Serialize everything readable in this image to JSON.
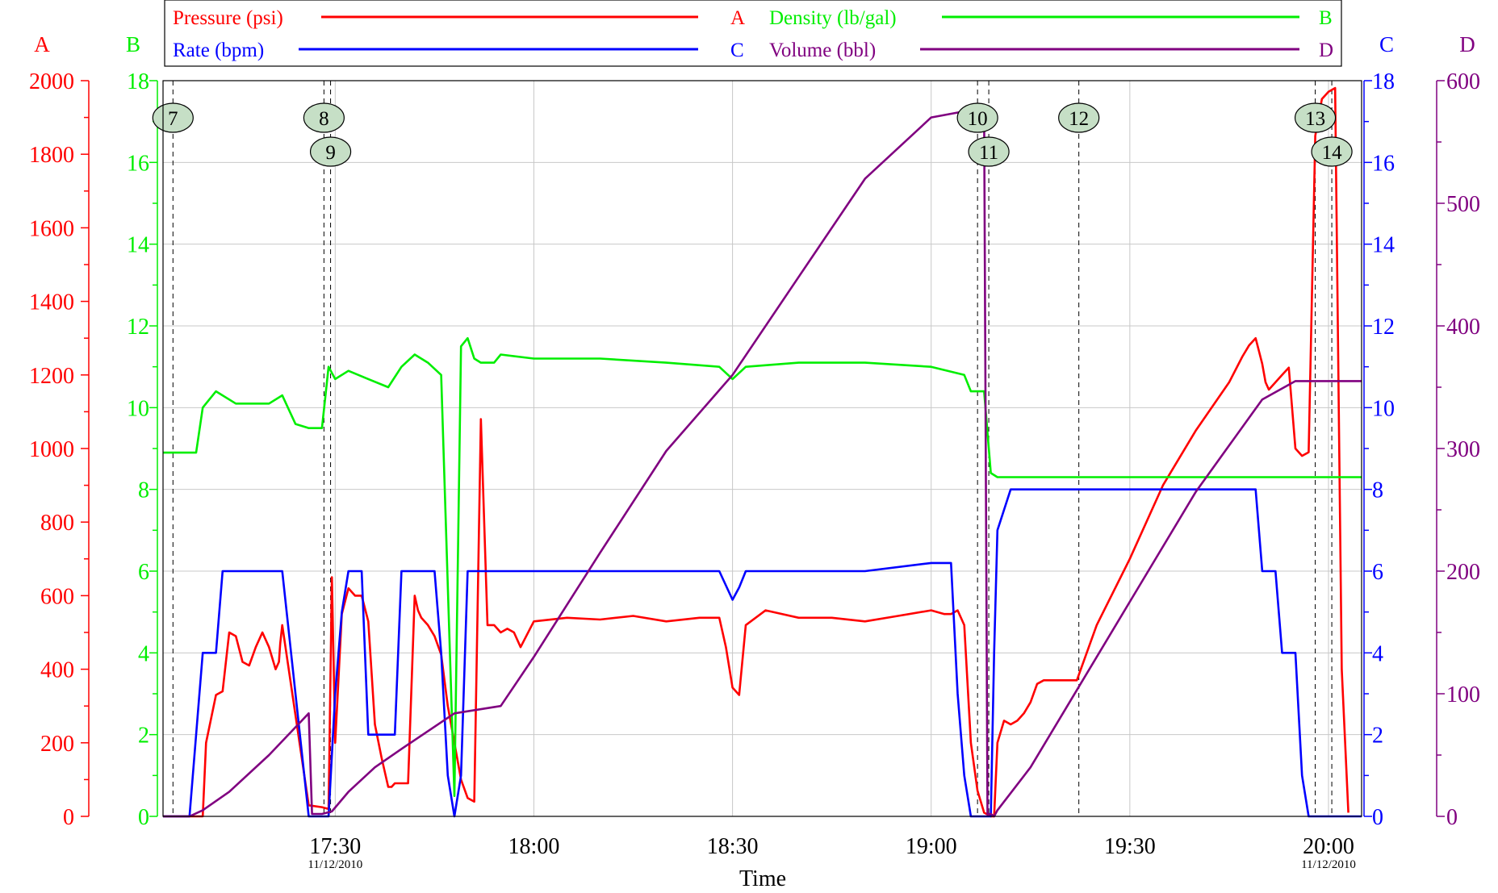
{
  "chart_data": {
    "type": "line",
    "title": "",
    "xlabel": "Time",
    "x_axis": {
      "unit": "time of day (hh:mm)",
      "range": [
        "17:04",
        "20:05"
      ],
      "tick_labels": [
        "17:30",
        "18:00",
        "18:30",
        "19:00",
        "19:30",
        "20:00"
      ],
      "date_labels": [
        {
          "at": "17:30",
          "text": "11/12/2010"
        },
        {
          "at": "20:00",
          "text": "11/12/2010"
        }
      ]
    },
    "axes": [
      {
        "id": "A",
        "letter": "A",
        "side": "left",
        "color": "#ff0000",
        "range": [
          0,
          2000
        ],
        "tick_labels": [
          "0",
          "200",
          "400",
          "600",
          "800",
          "1000",
          "1200",
          "1400",
          "1600",
          "1800",
          "2000"
        ]
      },
      {
        "id": "B",
        "letter": "B",
        "side": "left",
        "color": "#00ee00",
        "range": [
          0,
          18
        ],
        "tick_labels": [
          "0",
          "2",
          "4",
          "6",
          "8",
          "10",
          "12",
          "14",
          "16",
          "18"
        ]
      },
      {
        "id": "C",
        "letter": "C",
        "side": "right",
        "color": "#0000ff",
        "range": [
          0,
          18
        ],
        "tick_labels": [
          "0",
          "2",
          "4",
          "6",
          "8",
          "10",
          "12",
          "14",
          "16",
          "18"
        ]
      },
      {
        "id": "D",
        "letter": "D",
        "side": "right",
        "color": "#800080",
        "range": [
          0,
          600
        ],
        "tick_labels": [
          "0",
          "100",
          "200",
          "300",
          "400",
          "500",
          "600"
        ]
      }
    ],
    "legend_placement": "top",
    "grid": true,
    "series": [
      {
        "name": "Pressure (psi)",
        "axis": "A",
        "color": "#ff0000",
        "x": [
          "17:04",
          "17:06",
          "17:06.5",
          "17:07",
          "17:08",
          "17:09",
          "17:10",
          "17:10.5",
          "17:12",
          "17:13",
          "17:14",
          "17:15",
          "17:16",
          "17:17",
          "17:18",
          "17:19",
          "17:20",
          "17:21",
          "17:21.5",
          "17:21.7",
          "17:22",
          "17:26",
          "17:28",
          "17:29",
          "17:29.5",
          "17:30",
          "17:31",
          "17:32",
          "17:33",
          "17:34",
          "17:35",
          "17:36",
          "17:37",
          "17:38",
          "17:38.5",
          "17:39",
          "17:40",
          "17:41",
          "17:42",
          "17:42.5",
          "17:43",
          "17:44",
          "17:45",
          "17:46",
          "17:47",
          "17:48",
          "17:49",
          "17:50",
          "17:51",
          "17:52",
          "17:53",
          "17:54",
          "17:55",
          "17:56",
          "17:57",
          "17:58",
          "18:00",
          "18:05",
          "18:10",
          "18:15",
          "18:20",
          "18:25",
          "18:28",
          "18:29",
          "18:30",
          "18:31",
          "18:32",
          "18:35",
          "18:40",
          "18:45",
          "18:50",
          "18:55",
          "19:00",
          "19:02",
          "19:03",
          "19:04",
          "19:05",
          "19:06",
          "19:07",
          "19:08",
          "19:09",
          "19:09.5",
          "19:10",
          "19:11",
          "19:12",
          "19:13",
          "19:14",
          "19:15",
          "19:16",
          "19:17",
          "19:18",
          "19:19",
          "19:20",
          "19:21",
          "19:22",
          "19:25",
          "19:30",
          "19:35",
          "19:40",
          "19:45",
          "19:47",
          "19:48",
          "19:49",
          "19:50",
          "19:50.5",
          "19:51",
          "19:52",
          "19:53",
          "19:54",
          "19:55",
          "19:56",
          "19:57",
          "19:58",
          "19:59",
          "20:00",
          "20:01",
          "20:02",
          "20:03"
        ],
        "y": [
          0,
          0,
          0,
          0,
          0,
          0,
          0,
          200,
          330,
          340,
          500,
          490,
          420,
          410,
          460,
          500,
          460,
          400,
          420,
          470,
          520,
          30,
          25,
          20,
          650,
          200,
          550,
          620,
          600,
          600,
          530,
          250,
          160,
          80,
          80,
          90,
          90,
          90,
          600,
          560,
          540,
          520,
          490,
          440,
          300,
          200,
          100,
          50,
          40,
          1080,
          520,
          520,
          500,
          510,
          500,
          460,
          530,
          540,
          535,
          545,
          530,
          540,
          540,
          460,
          350,
          330,
          520,
          560,
          540,
          540,
          530,
          545,
          560,
          550,
          550,
          560,
          520,
          200,
          70,
          10,
          0,
          0,
          200,
          260,
          250,
          260,
          280,
          310,
          360,
          370,
          370,
          370,
          370,
          370,
          370,
          520,
          700,
          900,
          1050,
          1180,
          1250,
          1280,
          1300,
          1230,
          1180,
          1160,
          1180,
          1200,
          1220,
          1000,
          980,
          990,
          1850,
          1950,
          1970,
          1980,
          400,
          10
        ]
      },
      {
        "name": "Rate (bpm)",
        "axis": "C",
        "color": "#0000ff",
        "x": [
          "17:04",
          "17:08",
          "17:09",
          "17:10",
          "17:11",
          "17:12",
          "17:13",
          "17:14",
          "17:15",
          "17:16",
          "17:17",
          "17:18",
          "17:19",
          "17:20",
          "17:21",
          "17:22",
          "17:26",
          "17:28",
          "17:29",
          "17:30",
          "17:31",
          "17:32",
          "17:33",
          "17:34",
          "17:35",
          "17:36",
          "17:37",
          "17:38",
          "17:39",
          "17:40",
          "17:41",
          "17:42",
          "17:43",
          "17:44",
          "17:45",
          "17:46",
          "17:47",
          "17:48",
          "17:49",
          "17:50",
          "17:51",
          "17:52",
          "17:53",
          "17:55",
          "18:00",
          "18:10",
          "18:20",
          "18:28",
          "18:30",
          "18:31",
          "18:32",
          "18:33",
          "18:40",
          "18:50",
          "19:00",
          "19:03",
          "19:04",
          "19:05",
          "19:06",
          "19:07",
          "19:08",
          "19:09",
          "19:09.5",
          "19:10",
          "19:11",
          "19:12",
          "19:15",
          "19:20",
          "19:30",
          "19:40",
          "19:49",
          "19:50",
          "19:52",
          "19:53",
          "19:54",
          "19:55",
          "19:56",
          "19:57",
          "19:58",
          "20:00",
          "20:05"
        ],
        "y": [
          0,
          0,
          2,
          4,
          4,
          4,
          6,
          6,
          6,
          6,
          6,
          6,
          6,
          6,
          6,
          6,
          0,
          0,
          0,
          3,
          5,
          6,
          6,
          6,
          2,
          2,
          2,
          2,
          2,
          6,
          6,
          6,
          6,
          6,
          6,
          4,
          1,
          0,
          1,
          6,
          6,
          6,
          6,
          6,
          6,
          6,
          6,
          6,
          5.3,
          5.6,
          6,
          6,
          6,
          6,
          6.2,
          6.2,
          3,
          1,
          0,
          0,
          0,
          0,
          4,
          7,
          7.5,
          8,
          8,
          8,
          8,
          8,
          8,
          6,
          6,
          4,
          4,
          4,
          1,
          0,
          0,
          0,
          0
        ]
      },
      {
        "name": "Density (lb/gal)",
        "axis": "B",
        "color": "#00ee00",
        "x": [
          "17:04",
          "17:09",
          "17:10",
          "17:12",
          "17:15",
          "17:20",
          "17:22",
          "17:24",
          "17:26",
          "17:28",
          "17:29",
          "17:30",
          "17:32",
          "17:35",
          "17:38",
          "17:40",
          "17:42",
          "17:44",
          "17:46",
          "17:48",
          "17:49",
          "17:50",
          "17:51",
          "17:52",
          "17:54",
          "17:55",
          "18:00",
          "18:10",
          "18:20",
          "18:28",
          "18:30",
          "18:32",
          "18:40",
          "18:50",
          "19:00",
          "19:05",
          "19:06",
          "19:07",
          "19:08",
          "19:09",
          "19:10",
          "19:15",
          "19:20",
          "19:30",
          "19:40",
          "19:50",
          "20:00",
          "20:05"
        ],
        "y": [
          8.9,
          8.9,
          10.0,
          10.4,
          10.1,
          10.1,
          10.3,
          9.6,
          9.5,
          9.5,
          11.0,
          10.7,
          10.9,
          10.7,
          10.5,
          11.0,
          11.3,
          11.1,
          10.8,
          0.5,
          11.5,
          11.7,
          11.2,
          11.1,
          11.1,
          11.3,
          11.2,
          11.2,
          11.1,
          11.0,
          10.7,
          11.0,
          11.1,
          11.1,
          11.0,
          10.8,
          10.4,
          10.4,
          10.4,
          8.4,
          8.3,
          8.3,
          8.3,
          8.3,
          8.3,
          8.3,
          8.3,
          8.3
        ]
      },
      {
        "name": "Volume (bbl)",
        "axis": "D",
        "color": "#800080",
        "x": [
          "17:04",
          "17:08",
          "17:10",
          "17:14",
          "17:20",
          "17:26",
          "17:26.5",
          "17:28",
          "17:29.5",
          "17:32",
          "17:36",
          "17:40",
          "17:48",
          "17:55",
          "18:00",
          "18:10",
          "18:20",
          "18:30",
          "18:40",
          "18:50",
          "19:00",
          "19:05",
          "19:06",
          "19:07",
          "19:08",
          "19:08.5",
          "19:09",
          "19:09.5",
          "19:10",
          "19:15",
          "19:20",
          "19:30",
          "19:40",
          "19:50",
          "19:55",
          "20:00",
          "20:05"
        ],
        "y": [
          0,
          0,
          5,
          20,
          50,
          84,
          2,
          2,
          4,
          20,
          40,
          55,
          84,
          90,
          130,
          215,
          298,
          360,
          440,
          520,
          570,
          575,
          575,
          575,
          575,
          2,
          2,
          0,
          5,
          40,
          85,
          175,
          265,
          340,
          355,
          355,
          355
        ]
      }
    ],
    "events": [
      {
        "label": "7",
        "time": "17:05.5"
      },
      {
        "label": "8",
        "time": "17:28.3"
      },
      {
        "label": "9",
        "time": "17:29.3"
      },
      {
        "label": "10",
        "time": "19:07"
      },
      {
        "label": "11",
        "time": "19:08.7"
      },
      {
        "label": "12",
        "time": "19:22.3"
      },
      {
        "label": "13",
        "time": "19:58"
      },
      {
        "label": "14",
        "time": "20:00.5"
      }
    ],
    "legend": [
      {
        "name": "Pressure (psi)",
        "axis_letter": "A",
        "color": "#ff0000"
      },
      {
        "name": "Density (lb/gal)",
        "axis_letter": "B",
        "color": "#00ee00"
      },
      {
        "name": "Rate (bpm)",
        "axis_letter": "C",
        "color": "#0000ff"
      },
      {
        "name": "Volume (bbl)",
        "axis_letter": "D",
        "color": "#800080"
      }
    ]
  }
}
